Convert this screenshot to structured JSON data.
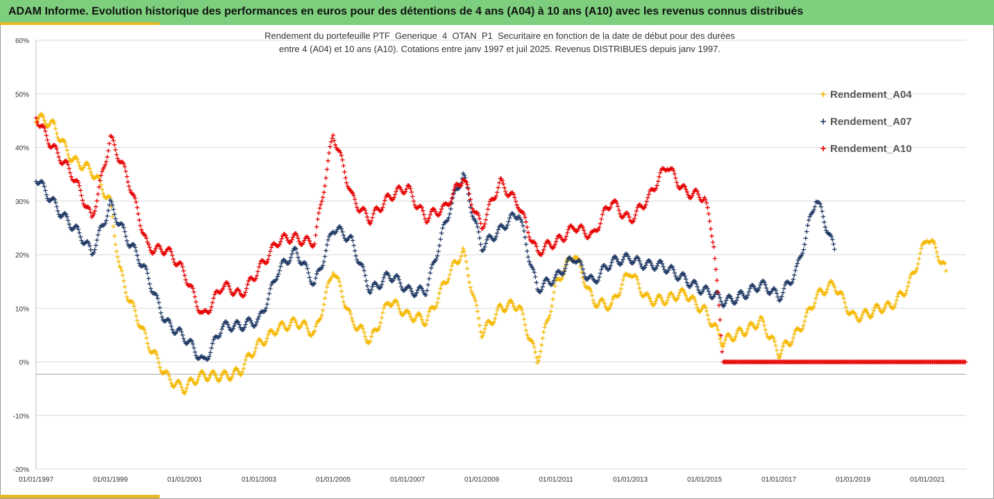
{
  "header": {
    "title": "ADAM Informe. Evolution historique des performances en euros pour des détentions de 4 ans (A04) à 10 ans (A10) avec les revenus connus distribués"
  },
  "colors": {
    "banner": "#7dcf7d",
    "accent": "#e5b82a",
    "A04": "#f5b800",
    "A07": "#1f3864",
    "A10": "#e60000"
  },
  "chart_data": {
    "type": "scatter",
    "subtitle": [
      "Rendement du portefeuille PTF_Generique_4_OTAN_P1_Securitaire  en fonction de la date de début pour des durées",
      "entre 4 (A04) et 10 ans (A10). Cotations entre janv 1997 et juil 2025. Revenus DISTRIBUES depuis janv 1997."
    ],
    "xlabel": "",
    "ylabel": "",
    "x_range": [
      "01/01/1997",
      "01/07/2021"
    ],
    "ylim": [
      -20,
      60
    ],
    "y_ticks": [
      "-20%",
      "-10%",
      "0%",
      "10%",
      "20%",
      "30%",
      "40%",
      "50%",
      "60%"
    ],
    "x_ticks": [
      "01/01/1997",
      "01/01/1999",
      "01/01/2001",
      "01/01/2003",
      "01/01/2005",
      "01/01/2007",
      "01/01/2009",
      "01/01/2011",
      "01/01/2013",
      "01/01/2015",
      "01/01/2017",
      "01/01/2019",
      "01/01/2021"
    ],
    "grid": true,
    "legend_position": "right",
    "marker": "+",
    "series": [
      {
        "name": "Rendement_A04",
        "points": [
          [
            "1997-01",
            45
          ],
          [
            "1997-07",
            44
          ],
          [
            "1998-01",
            38
          ],
          [
            "1998-07",
            35
          ],
          [
            "1999-01",
            30
          ],
          [
            "1999-04",
            18
          ],
          [
            "1999-07",
            12
          ],
          [
            "2000-01",
            3
          ],
          [
            "2000-07",
            -2
          ],
          [
            "2001-01",
            -5
          ],
          [
            "2001-07",
            -3
          ],
          [
            "2002-01",
            -2
          ],
          [
            "2002-07",
            -2
          ],
          [
            "2003-01",
            3
          ],
          [
            "2003-07",
            7
          ],
          [
            "2004-01",
            7
          ],
          [
            "2004-07",
            5
          ],
          [
            "2005-01",
            18
          ],
          [
            "2005-07",
            7
          ],
          [
            "2006-01",
            4
          ],
          [
            "2006-07",
            12
          ],
          [
            "2007-01",
            8
          ],
          [
            "2007-07",
            8
          ],
          [
            "2008-01",
            15
          ],
          [
            "2008-07",
            20
          ],
          [
            "2009-01",
            6
          ],
          [
            "2009-07",
            10
          ],
          [
            "2010-01",
            10
          ],
          [
            "2010-07",
            1
          ],
          [
            "2011-01",
            14
          ],
          [
            "2011-07",
            20
          ],
          [
            "2012-01",
            12
          ],
          [
            "2012-07",
            10
          ],
          [
            "2013-01",
            17
          ],
          [
            "2013-07",
            12
          ],
          [
            "2014-01",
            11
          ],
          [
            "2014-07",
            13
          ],
          [
            "2015-01",
            10
          ],
          [
            "2015-07",
            3
          ],
          [
            "2016-01",
            6
          ],
          [
            "2016-07",
            8
          ],
          [
            "2017-01",
            1
          ],
          [
            "2017-07",
            6
          ],
          [
            "2018-01",
            12
          ],
          [
            "2018-07",
            14
          ],
          [
            "2019-01",
            9
          ],
          [
            "2019-07",
            9
          ],
          [
            "2020-01",
            10
          ],
          [
            "2020-07",
            15
          ],
          [
            "2021-01",
            23
          ],
          [
            "2021-07",
            17
          ]
        ]
      },
      {
        "name": "Rendement_A07",
        "points": [
          [
            "1997-01",
            34
          ],
          [
            "1997-07",
            30
          ],
          [
            "1998-01",
            25
          ],
          [
            "1998-07",
            20
          ],
          [
            "1999-01",
            30
          ],
          [
            "1999-07",
            22
          ],
          [
            "2000-01",
            16
          ],
          [
            "2000-07",
            8
          ],
          [
            "2001-01",
            4
          ],
          [
            "2001-07",
            0
          ],
          [
            "2002-01",
            7
          ],
          [
            "2002-07",
            6
          ],
          [
            "2003-01",
            8
          ],
          [
            "2003-07",
            17
          ],
          [
            "2004-01",
            20
          ],
          [
            "2004-07",
            15
          ],
          [
            "2005-01",
            25
          ],
          [
            "2005-07",
            22
          ],
          [
            "2006-01",
            14
          ],
          [
            "2006-07",
            16
          ],
          [
            "2007-01",
            13
          ],
          [
            "2007-07",
            14
          ],
          [
            "2008-01",
            25
          ],
          [
            "2008-07",
            35
          ],
          [
            "2009-01",
            22
          ],
          [
            "2009-07",
            24
          ],
          [
            "2010-01",
            28
          ],
          [
            "2010-07",
            14
          ],
          [
            "2011-01",
            15
          ],
          [
            "2011-07",
            20
          ],
          [
            "2012-01",
            15
          ],
          [
            "2012-07",
            18
          ],
          [
            "2013-01",
            20
          ],
          [
            "2013-07",
            18
          ],
          [
            "2014-01",
            17
          ],
          [
            "2014-07",
            16
          ],
          [
            "2015-01",
            13
          ],
          [
            "2015-07",
            11
          ],
          [
            "2016-01",
            13
          ],
          [
            "2016-07",
            14
          ],
          [
            "2017-01",
            12
          ],
          [
            "2017-07",
            18
          ],
          [
            "2018-01",
            30
          ],
          [
            "2018-07",
            21
          ]
        ]
      },
      {
        "name": "Rendement_A10",
        "points": [
          [
            "1997-01",
            46
          ],
          [
            "1997-07",
            40
          ],
          [
            "1998-01",
            34
          ],
          [
            "1998-07",
            27
          ],
          [
            "1999-01",
            42
          ],
          [
            "1999-07",
            33
          ],
          [
            "2000-01",
            22
          ],
          [
            "2000-07",
            21
          ],
          [
            "2001-01",
            16
          ],
          [
            "2001-07",
            9
          ],
          [
            "2002-01",
            14
          ],
          [
            "2002-07",
            12
          ],
          [
            "2003-01",
            18
          ],
          [
            "2003-07",
            22
          ],
          [
            "2004-01",
            23
          ],
          [
            "2004-07",
            23
          ],
          [
            "2005-01",
            42
          ],
          [
            "2005-07",
            31
          ],
          [
            "2006-01",
            27
          ],
          [
            "2006-07",
            30
          ],
          [
            "2007-01",
            33
          ],
          [
            "2007-07",
            27
          ],
          [
            "2008-01",
            28
          ],
          [
            "2008-07",
            35
          ],
          [
            "2009-01",
            25
          ],
          [
            "2009-07",
            33
          ],
          [
            "2010-01",
            30
          ],
          [
            "2010-07",
            20
          ],
          [
            "2011-01",
            22
          ],
          [
            "2011-07",
            26
          ],
          [
            "2012-01",
            23
          ],
          [
            "2012-07",
            30
          ],
          [
            "2013-01",
            27
          ],
          [
            "2013-07",
            30
          ],
          [
            "2014-01",
            37
          ],
          [
            "2014-07",
            32
          ],
          [
            "2015-01",
            30
          ],
          [
            "2015-04",
            22
          ],
          [
            "2015-07",
            0
          ],
          [
            "2016-07",
            0
          ],
          [
            "2017-07",
            0
          ],
          [
            "2018-07",
            0
          ],
          [
            "2019-07",
            0
          ],
          [
            "2020-07",
            0
          ],
          [
            "2021-07",
            0
          ],
          [
            "2022-03",
            0
          ]
        ]
      }
    ]
  }
}
